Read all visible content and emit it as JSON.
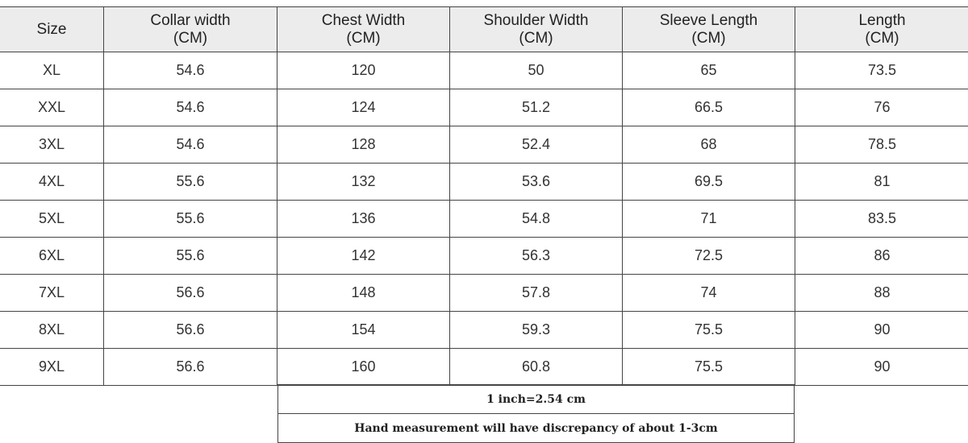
{
  "headers": [
    [
      "Size",
      ""
    ],
    [
      "Collar width",
      "(CM)"
    ],
    [
      "Chest Width",
      "(CM)"
    ],
    [
      "Shoulder Width",
      "(CM)"
    ],
    [
      "Sleeve Length",
      "(CM)"
    ],
    [
      "Length",
      "(CM)"
    ]
  ],
  "rows": [
    [
      "XL",
      "54.6",
      "120",
      "50",
      "65",
      "73.5"
    ],
    [
      "XXL",
      "54.6",
      "124",
      "51.2",
      "66.5",
      "76"
    ],
    [
      "3XL",
      "54.6",
      "128",
      "52.4",
      "68",
      "78.5"
    ],
    [
      "4XL",
      "55.6",
      "132",
      "53.6",
      "69.5",
      "81"
    ],
    [
      "5XL",
      "55.6",
      "136",
      "54.8",
      "71",
      "83.5"
    ],
    [
      "6XL",
      "55.6",
      "142",
      "56.3",
      "72.5",
      "86"
    ],
    [
      "7XL",
      "56.6",
      "148",
      "57.8",
      "74",
      "88"
    ],
    [
      "8XL",
      "56.6",
      "154",
      "59.3",
      "75.5",
      "90"
    ],
    [
      "9XL",
      "56.6",
      "160",
      "60.8",
      "75.5",
      "90"
    ]
  ],
  "notes": {
    "conversion": "1 inch=2.54 cm",
    "discrepancy": "Hand measurement will have discrepancy of about 1-3cm"
  }
}
